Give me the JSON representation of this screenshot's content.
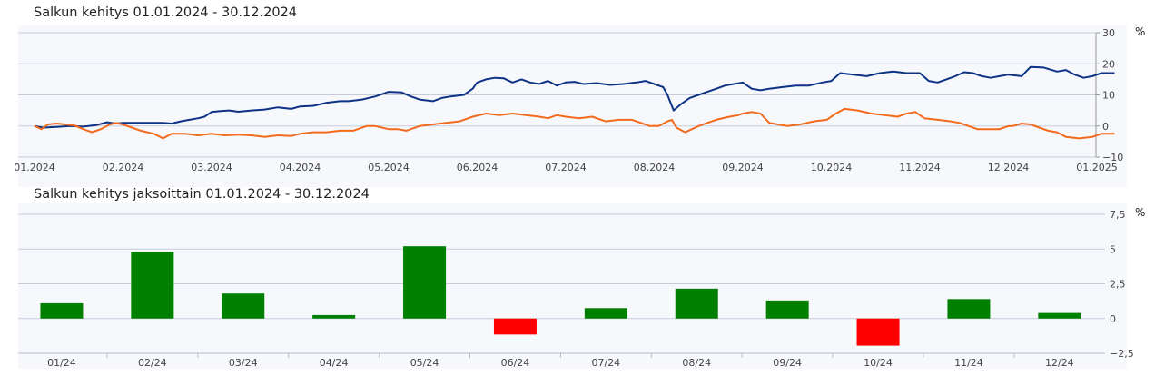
{
  "colors": {
    "panel_bg": "#f6f8fc",
    "grid": "#c5ccd8",
    "portfolio_line": "#0e3385",
    "benchmark_line": "#f26b1d",
    "positive_bar": "#008000",
    "negative_bar": "#ff0000"
  },
  "chart_data": [
    {
      "type": "line",
      "title": "Salkun kehitys 01.01.2024 - 30.12.2024",
      "unit": "%",
      "ylim": [
        -10,
        30
      ],
      "y_ticks": [
        "30",
        "20",
        "10",
        "0",
        "−10"
      ],
      "x_tick_labels": [
        "01.2024",
        "02.2024",
        "03.2024",
        "04.2024",
        "05.2024",
        "06.2024",
        "07.2024",
        "08.2024",
        "09.2024",
        "10.2024",
        "11.2024",
        "12.2024",
        "01.2025"
      ],
      "x_tick_months": [
        0,
        1,
        2,
        3,
        4,
        5,
        6,
        7,
        8,
        9,
        10,
        11,
        12
      ],
      "grid": true,
      "series": [
        {
          "color": "#0e3385",
          "points": [
            [
              0.0,
              0
            ],
            [
              0.1,
              -0.5
            ],
            [
              0.25,
              -0.3
            ],
            [
              0.4,
              0
            ],
            [
              0.55,
              -0.2
            ],
            [
              0.7,
              0.3
            ],
            [
              0.82,
              1.2
            ],
            [
              0.92,
              0.8
            ],
            [
              1.0,
              1
            ],
            [
              1.15,
              1
            ],
            [
              1.3,
              1
            ],
            [
              1.45,
              1
            ],
            [
              1.55,
              0.8
            ],
            [
              1.65,
              1.5
            ],
            [
              1.75,
              2
            ],
            [
              1.85,
              2.5
            ],
            [
              1.92,
              3
            ],
            [
              2.0,
              4.5
            ],
            [
              2.1,
              4.8
            ],
            [
              2.2,
              5
            ],
            [
              2.3,
              4.6
            ],
            [
              2.45,
              5
            ],
            [
              2.6,
              5.3
            ],
            [
              2.75,
              6
            ],
            [
              2.9,
              5.5
            ],
            [
              3.0,
              6.3
            ],
            [
              3.15,
              6.5
            ],
            [
              3.3,
              7.5
            ],
            [
              3.45,
              8
            ],
            [
              3.55,
              8
            ],
            [
              3.7,
              8.5
            ],
            [
              3.85,
              9.5
            ],
            [
              3.95,
              10.5
            ],
            [
              4.0,
              11
            ],
            [
              4.15,
              10.8
            ],
            [
              4.25,
              9.5
            ],
            [
              4.35,
              8.5
            ],
            [
              4.5,
              8
            ],
            [
              4.6,
              9
            ],
            [
              4.7,
              9.5
            ],
            [
              4.85,
              10
            ],
            [
              4.95,
              12
            ],
            [
              5.0,
              14
            ],
            [
              5.1,
              15
            ],
            [
              5.2,
              15.5
            ],
            [
              5.3,
              15.3
            ],
            [
              5.4,
              14
            ],
            [
              5.5,
              15
            ],
            [
              5.6,
              14
            ],
            [
              5.7,
              13.5
            ],
            [
              5.8,
              14.5
            ],
            [
              5.9,
              13
            ],
            [
              6.0,
              14
            ],
            [
              6.1,
              14.2
            ],
            [
              6.2,
              13.5
            ],
            [
              6.35,
              13.8
            ],
            [
              6.5,
              13.2
            ],
            [
              6.65,
              13.5
            ],
            [
              6.8,
              14
            ],
            [
              6.9,
              14.5
            ],
            [
              7.0,
              13.5
            ],
            [
              7.1,
              12.5
            ],
            [
              7.15,
              10
            ],
            [
              7.22,
              5
            ],
            [
              7.3,
              7
            ],
            [
              7.4,
              9
            ],
            [
              7.5,
              10
            ],
            [
              7.6,
              11
            ],
            [
              7.7,
              12
            ],
            [
              7.8,
              13
            ],
            [
              7.9,
              13.5
            ],
            [
              8.0,
              14
            ],
            [
              8.1,
              12
            ],
            [
              8.2,
              11.5
            ],
            [
              8.3,
              12
            ],
            [
              8.45,
              12.5
            ],
            [
              8.6,
              13
            ],
            [
              8.75,
              13
            ],
            [
              8.9,
              14
            ],
            [
              9.0,
              14.5
            ],
            [
              9.1,
              17
            ],
            [
              9.25,
              16.5
            ],
            [
              9.4,
              16
            ],
            [
              9.55,
              17
            ],
            [
              9.7,
              17.5
            ],
            [
              9.85,
              17
            ],
            [
              10.0,
              17
            ],
            [
              10.1,
              14.5
            ],
            [
              10.2,
              14
            ],
            [
              10.3,
              15
            ],
            [
              10.4,
              16
            ],
            [
              10.5,
              17.3
            ],
            [
              10.6,
              17
            ],
            [
              10.7,
              16
            ],
            [
              10.8,
              15.5
            ],
            [
              10.9,
              16
            ],
            [
              11.0,
              16.5
            ],
            [
              11.15,
              16
            ],
            [
              11.25,
              19
            ],
            [
              11.4,
              18.8
            ],
            [
              11.55,
              17.5
            ],
            [
              11.65,
              18
            ],
            [
              11.75,
              16.5
            ],
            [
              11.85,
              15.5
            ],
            [
              11.95,
              16
            ],
            [
              12.05,
              17
            ],
            [
              12.2,
              17
            ]
          ]
        },
        {
          "color": "#f26b1d",
          "points": [
            [
              0.0,
              0
            ],
            [
              0.08,
              -1
            ],
            [
              0.15,
              0.5
            ],
            [
              0.25,
              0.8
            ],
            [
              0.35,
              0.5
            ],
            [
              0.45,
              0.2
            ],
            [
              0.55,
              -1
            ],
            [
              0.65,
              -2
            ],
            [
              0.75,
              -1
            ],
            [
              0.85,
              0.5
            ],
            [
              0.92,
              1
            ],
            [
              1.0,
              0.5
            ],
            [
              1.1,
              -0.5
            ],
            [
              1.2,
              -1.5
            ],
            [
              1.35,
              -2.5
            ],
            [
              1.45,
              -4
            ],
            [
              1.55,
              -2.5
            ],
            [
              1.7,
              -2.5
            ],
            [
              1.85,
              -3
            ],
            [
              2.0,
              -2.5
            ],
            [
              2.15,
              -3
            ],
            [
              2.3,
              -2.8
            ],
            [
              2.45,
              -3
            ],
            [
              2.6,
              -3.5
            ],
            [
              2.75,
              -3
            ],
            [
              2.9,
              -3.2
            ],
            [
              3.0,
              -2.5
            ],
            [
              3.15,
              -2
            ],
            [
              3.3,
              -2
            ],
            [
              3.45,
              -1.5
            ],
            [
              3.6,
              -1.5
            ],
            [
              3.75,
              0
            ],
            [
              3.85,
              0
            ],
            [
              4.0,
              -1
            ],
            [
              4.1,
              -1
            ],
            [
              4.2,
              -1.5
            ],
            [
              4.35,
              0
            ],
            [
              4.5,
              0.5
            ],
            [
              4.65,
              1
            ],
            [
              4.8,
              1.5
            ],
            [
              4.95,
              3
            ],
            [
              5.1,
              4
            ],
            [
              5.25,
              3.5
            ],
            [
              5.4,
              4
            ],
            [
              5.55,
              3.5
            ],
            [
              5.7,
              3
            ],
            [
              5.8,
              2.5
            ],
            [
              5.9,
              3.5
            ],
            [
              6.0,
              3
            ],
            [
              6.15,
              2.5
            ],
            [
              6.3,
              3
            ],
            [
              6.45,
              1.5
            ],
            [
              6.6,
              2
            ],
            [
              6.75,
              2
            ],
            [
              6.85,
              1
            ],
            [
              6.95,
              0
            ],
            [
              7.05,
              0
            ],
            [
              7.15,
              1.5
            ],
            [
              7.2,
              2
            ],
            [
              7.25,
              -0.5
            ],
            [
              7.35,
              -2
            ],
            [
              7.5,
              0
            ],
            [
              7.6,
              1
            ],
            [
              7.7,
              2
            ],
            [
              7.85,
              3
            ],
            [
              7.95,
              3.5
            ],
            [
              8.0,
              4
            ],
            [
              8.1,
              4.5
            ],
            [
              8.2,
              4
            ],
            [
              8.3,
              1
            ],
            [
              8.4,
              0.5
            ],
            [
              8.5,
              0
            ],
            [
              8.65,
              0.5
            ],
            [
              8.8,
              1.5
            ],
            [
              8.95,
              2
            ],
            [
              9.05,
              4
            ],
            [
              9.15,
              5.5
            ],
            [
              9.3,
              5
            ],
            [
              9.45,
              4
            ],
            [
              9.6,
              3.5
            ],
            [
              9.75,
              3
            ],
            [
              9.85,
              4
            ],
            [
              9.95,
              4.5
            ],
            [
              10.05,
              2.5
            ],
            [
              10.2,
              2
            ],
            [
              10.35,
              1.5
            ],
            [
              10.45,
              1
            ],
            [
              10.55,
              0
            ],
            [
              10.65,
              -1
            ],
            [
              10.75,
              -1
            ],
            [
              10.9,
              -1
            ],
            [
              11.0,
              0
            ],
            [
              11.05,
              0
            ],
            [
              11.15,
              0.8
            ],
            [
              11.25,
              0.5
            ],
            [
              11.35,
              -0.5
            ],
            [
              11.45,
              -1.5
            ],
            [
              11.55,
              -2
            ],
            [
              11.65,
              -3.5
            ],
            [
              11.8,
              -4
            ],
            [
              11.95,
              -3.5
            ],
            [
              12.05,
              -2.5
            ],
            [
              12.2,
              -2.5
            ]
          ]
        }
      ]
    },
    {
      "type": "bar",
      "title": "Salkun kehitys jaksoittain 01.01.2024 - 30.12.2024",
      "unit": "%",
      "ylim": [
        -2.5,
        7.5
      ],
      "y_ticks": [
        "7,5",
        "5",
        "2,5",
        "0",
        "−2,5"
      ],
      "y_tick_values": [
        7.5,
        5,
        2.5,
        0,
        -2.5
      ],
      "grid": true,
      "categories": [
        "01/24",
        "02/24",
        "03/24",
        "04/24",
        "05/24",
        "06/24",
        "07/24",
        "08/24",
        "09/24",
        "10/24",
        "11/24",
        "12/24"
      ],
      "values": [
        1.1,
        4.8,
        1.8,
        0.25,
        5.2,
        -1.15,
        0.75,
        2.15,
        1.3,
        -1.95,
        1.4,
        0.4
      ]
    }
  ]
}
